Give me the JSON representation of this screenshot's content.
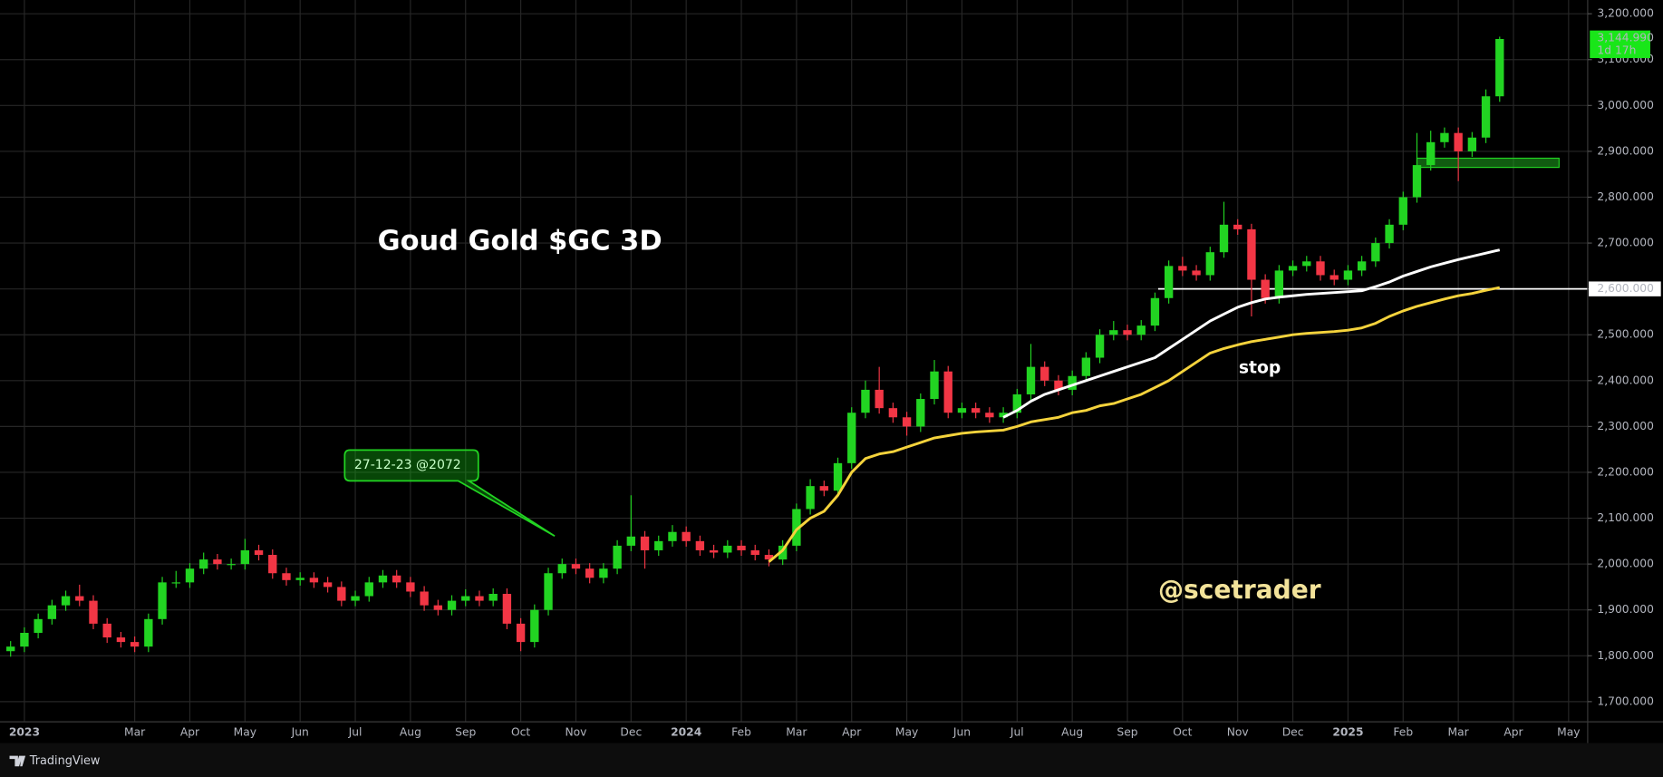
{
  "chart_data": {
    "type": "candlestick",
    "title": "Goud Gold $GC 3D",
    "annotations": {
      "callout": "27-12-23 @2072",
      "watermark": "@scetrader",
      "note": "stop"
    },
    "categories": [
      null,
      "2023",
      null,
      null,
      null,
      null,
      null,
      null,
      null,
      "Mar",
      null,
      null,
      null,
      "Apr",
      null,
      null,
      null,
      "May",
      null,
      null,
      null,
      "Jun",
      null,
      null,
      null,
      "Jul",
      null,
      null,
      null,
      "Aug",
      null,
      null,
      null,
      "Sep",
      null,
      null,
      null,
      "Oct",
      null,
      null,
      null,
      "Nov",
      null,
      null,
      null,
      "Dec",
      null,
      null,
      null,
      "2024",
      null,
      null,
      null,
      "Feb",
      null,
      null,
      null,
      "Mar",
      null,
      null,
      null,
      "Apr",
      null,
      null,
      null,
      "May",
      null,
      null,
      null,
      "Jun",
      null,
      null,
      null,
      "Jul",
      null,
      null,
      null,
      "Aug",
      null,
      null,
      null,
      "Sep",
      null,
      null,
      null,
      "Oct",
      null,
      null,
      null,
      "Nov",
      null,
      null,
      null,
      "Dec",
      null,
      null,
      null,
      "2025",
      null,
      null,
      null,
      "Feb",
      null,
      null,
      null,
      "Mar",
      null,
      null,
      null,
      "Apr",
      null,
      null,
      null,
      "May"
    ],
    "open": [
      1810,
      1820,
      1850,
      1880,
      1910,
      1930,
      1920,
      1870,
      1840,
      1830,
      1820,
      1880,
      1960,
      1960,
      1990,
      2010,
      2000,
      2000,
      2030,
      2020,
      1980,
      1965,
      1970,
      1960,
      1950,
      1920,
      1930,
      1960,
      1975,
      1960,
      1940,
      1910,
      1900,
      1920,
      1930,
      1920,
      1935,
      1870,
      1830,
      1900,
      1980,
      2000,
      1990,
      1970,
      1990,
      2040,
      2060,
      2030,
      2050,
      2070,
      2050,
      2030,
      2025,
      2040,
      2030,
      2020,
      2010,
      2040,
      2120,
      2170,
      2160,
      2220,
      2330,
      2380,
      2340,
      2320,
      2300,
      2360,
      2420,
      2330,
      2340,
      2330,
      2320,
      2330,
      2370,
      2430,
      2400,
      2380,
      2410,
      2450,
      2500,
      2510,
      2500,
      2520,
      2580,
      2650,
      2640,
      2630,
      2680,
      2740,
      2730,
      2620,
      2580,
      2640,
      2650,
      2660,
      2630,
      2620,
      2640,
      2660,
      2700,
      2740,
      2800,
      2870,
      2920,
      2940,
      2900,
      2930,
      3020,
      null,
      null,
      null,
      null,
      null
    ],
    "high": [
      1832,
      1862,
      1892,
      1922,
      1942,
      1955,
      1932,
      1882,
      1852,
      1842,
      1892,
      1972,
      1985,
      2002,
      2025,
      2022,
      2012,
      2055,
      2042,
      2032,
      1992,
      1982,
      1982,
      1972,
      1962,
      1942,
      1972,
      1987,
      1987,
      1972,
      1952,
      1922,
      1932,
      1945,
      1942,
      1947,
      1947,
      1882,
      1912,
      1992,
      2012,
      2012,
      2002,
      2002,
      2052,
      2150,
      2072,
      2062,
      2085,
      2082,
      2062,
      2042,
      2052,
      2052,
      2042,
      2032,
      2052,
      2132,
      2185,
      2182,
      2232,
      2342,
      2400,
      2430,
      2352,
      2332,
      2372,
      2445,
      2432,
      2352,
      2352,
      2342,
      2342,
      2382,
      2480,
      2442,
      2412,
      2422,
      2462,
      2512,
      2530,
      2522,
      2532,
      2592,
      2662,
      2670,
      2652,
      2692,
      2790,
      2752,
      2742,
      2632,
      2652,
      2662,
      2672,
      2672,
      2642,
      2652,
      2672,
      2712,
      2752,
      2812,
      2940,
      2945,
      2952,
      2952,
      2942,
      3035,
      3150,
      null,
      null,
      null,
      null,
      null
    ],
    "low": [
      1798,
      1808,
      1838,
      1868,
      1898,
      1908,
      1858,
      1828,
      1818,
      1808,
      1808,
      1868,
      1948,
      1948,
      1978,
      1988,
      1988,
      1988,
      2008,
      1968,
      1953,
      1953,
      1948,
      1938,
      1908,
      1908,
      1918,
      1948,
      1948,
      1928,
      1898,
      1888,
      1888,
      1908,
      1908,
      1908,
      1858,
      1810,
      1818,
      1888,
      1968,
      1978,
      1958,
      1958,
      1978,
      2028,
      1990,
      2018,
      2038,
      2038,
      2018,
      2013,
      2013,
      2018,
      2008,
      1995,
      1998,
      2028,
      2108,
      2148,
      2148,
      2208,
      2318,
      2328,
      2308,
      2280,
      2288,
      2348,
      2318,
      2318,
      2318,
      2308,
      2308,
      2318,
      2358,
      2388,
      2368,
      2368,
      2398,
      2438,
      2488,
      2488,
      2488,
      2508,
      2568,
      2628,
      2618,
      2618,
      2668,
      2718,
      2540,
      2568,
      2568,
      2628,
      2638,
      2618,
      2608,
      2608,
      2628,
      2648,
      2688,
      2728,
      2788,
      2858,
      2908,
      2835,
      2888,
      2918,
      3008,
      null,
      null,
      null,
      null,
      null
    ],
    "close": [
      1820,
      1850,
      1880,
      1910,
      1930,
      1920,
      1870,
      1840,
      1830,
      1820,
      1880,
      1960,
      1960,
      1990,
      2010,
      2000,
      2000,
      2030,
      2020,
      1980,
      1965,
      1970,
      1960,
      1950,
      1920,
      1930,
      1960,
      1975,
      1960,
      1940,
      1910,
      1900,
      1920,
      1930,
      1920,
      1935,
      1870,
      1830,
      1900,
      1980,
      2000,
      1990,
      1970,
      1990,
      2040,
      2060,
      2030,
      2050,
      2070,
      2050,
      2030,
      2025,
      2040,
      2030,
      2020,
      2010,
      2040,
      2120,
      2170,
      2160,
      2220,
      2330,
      2380,
      2340,
      2320,
      2300,
      2360,
      2420,
      2330,
      2340,
      2330,
      2320,
      2330,
      2370,
      2430,
      2400,
      2380,
      2410,
      2450,
      2500,
      2510,
      2500,
      2520,
      2580,
      2650,
      2640,
      2630,
      2680,
      2740,
      2730,
      2620,
      2580,
      2640,
      2650,
      2660,
      2630,
      2620,
      2640,
      2660,
      2700,
      2740,
      2800,
      2870,
      2920,
      2940,
      2900,
      2930,
      3020,
      3144.99,
      null,
      null,
      null,
      null,
      null
    ],
    "up_color": "#22d422",
    "down_color": "#f23645",
    "overlays": [
      {
        "color": "#ffffff",
        "values": [
          null,
          null,
          null,
          null,
          null,
          null,
          null,
          null,
          null,
          null,
          null,
          null,
          null,
          null,
          null,
          null,
          null,
          null,
          null,
          null,
          null,
          null,
          null,
          null,
          null,
          null,
          null,
          null,
          null,
          null,
          null,
          null,
          null,
          null,
          null,
          null,
          null,
          null,
          null,
          null,
          null,
          null,
          null,
          null,
          null,
          null,
          null,
          null,
          null,
          null,
          null,
          null,
          null,
          null,
          null,
          null,
          null,
          null,
          null,
          null,
          null,
          null,
          null,
          null,
          null,
          null,
          null,
          null,
          null,
          null,
          null,
          null,
          2320,
          2335,
          2355,
          2370,
          2380,
          2390,
          2400,
          2410,
          2420,
          2430,
          2440,
          2450,
          2470,
          2490,
          2510,
          2530,
          2545,
          2560,
          2570,
          2578,
          2582,
          2585,
          2588,
          2590,
          2592,
          2594,
          2596,
          2605,
          2615,
          2628,
          2638,
          2648,
          2656,
          2664,
          2671,
          2678,
          2685,
          null,
          null,
          null,
          null,
          null
        ]
      },
      {
        "color": "#f5d33c",
        "values": [
          null,
          null,
          null,
          null,
          null,
          null,
          null,
          null,
          null,
          null,
          null,
          null,
          null,
          null,
          null,
          null,
          null,
          null,
          null,
          null,
          null,
          null,
          null,
          null,
          null,
          null,
          null,
          null,
          null,
          null,
          null,
          null,
          null,
          null,
          null,
          null,
          null,
          null,
          null,
          null,
          null,
          null,
          null,
          null,
          null,
          null,
          null,
          null,
          null,
          null,
          null,
          null,
          null,
          null,
          null,
          2005,
          2030,
          2075,
          2100,
          2115,
          2150,
          2200,
          2230,
          2240,
          2245,
          2255,
          2265,
          2275,
          2280,
          2285,
          2288,
          2290,
          2292,
          2300,
          2310,
          2315,
          2320,
          2330,
          2335,
          2345,
          2350,
          2360,
          2370,
          2385,
          2400,
          2420,
          2440,
          2460,
          2470,
          2478,
          2485,
          2490,
          2495,
          2500,
          2503,
          2505,
          2507,
          2510,
          2515,
          2525,
          2540,
          2552,
          2562,
          2570,
          2578,
          2585,
          2590,
          2597,
          2603,
          null,
          null,
          null,
          null,
          null
        ]
      }
    ],
    "hlines": [
      {
        "value": 2600,
        "label": "2,600.000",
        "color": "#ffffff"
      }
    ],
    "zone": {
      "ylim": [
        2865,
        2885
      ],
      "color": "#1fa81f"
    },
    "last_price": {
      "value": 3144.99,
      "label": "3,144.990",
      "countdown": "1d 17h",
      "color": "#19e619"
    },
    "ylim": [
      1656,
      3230
    ],
    "yticks": [
      {
        "value": 1700,
        "label": "1,700.000"
      },
      {
        "value": 1800,
        "label": "1,800.000"
      },
      {
        "value": 1900,
        "label": "1,900.000"
      },
      {
        "value": 2000,
        "label": "2,000.000"
      },
      {
        "value": 2100,
        "label": "2,100.000"
      },
      {
        "value": 2200,
        "label": "2,200.000"
      },
      {
        "value": 2300,
        "label": "2,300.000"
      },
      {
        "value": 2400,
        "label": "2,400.000"
      },
      {
        "value": 2500,
        "label": "2,500.000"
      },
      {
        "value": 2600,
        "label": "2,600.000"
      },
      {
        "value": 2700,
        "label": "2,700.000"
      },
      {
        "value": 2800,
        "label": "2,800.000"
      },
      {
        "value": 2900,
        "label": "2,900.000"
      },
      {
        "value": 3000,
        "label": "3,000.000"
      },
      {
        "value": 3100,
        "label": "3,100.000"
      },
      {
        "value": 3200,
        "label": "3,200.000"
      }
    ],
    "grid": true
  },
  "footer": {
    "brand": "TradingView"
  }
}
